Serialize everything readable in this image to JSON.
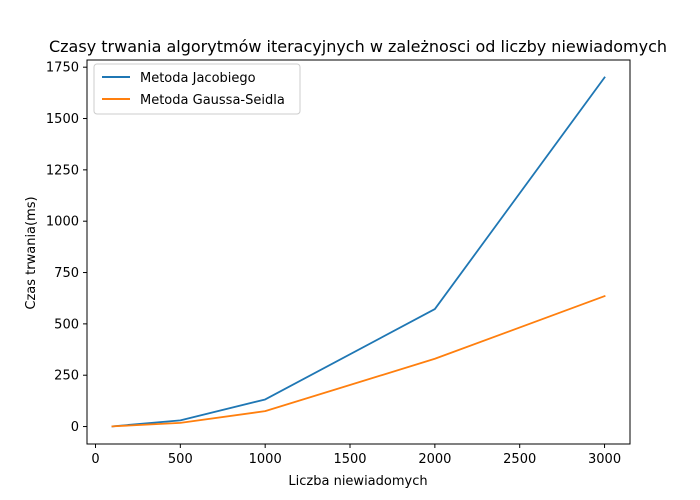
{
  "chart_data": {
    "type": "line",
    "title": "Czasy trwania algorytmów iteracyjnych w zależnosci od liczby niewiadomych",
    "xlabel": "Liczba niewiadomych",
    "ylabel": "Czas trwania(ms)",
    "xlim": [
      -50,
      3150
    ],
    "ylim": [
      -85,
      1785
    ],
    "xticks": [
      0,
      500,
      1000,
      1500,
      2000,
      2500,
      3000
    ],
    "yticks": [
      0,
      250,
      500,
      750,
      1000,
      1250,
      1500,
      1750
    ],
    "legend_position": "upper-left",
    "grid": false,
    "series": [
      {
        "name": "Metoda Jacobiego",
        "color": "#1f77b4",
        "x": [
          100,
          500,
          1000,
          2000,
          3000
        ],
        "y": [
          1,
          30,
          132,
          572,
          1700
        ]
      },
      {
        "name": "Metoda Gaussa-Seidla",
        "color": "#ff7f0e",
        "x": [
          100,
          500,
          1000,
          2000,
          3000
        ],
        "y": [
          1,
          18,
          75,
          330,
          635
        ]
      }
    ]
  }
}
